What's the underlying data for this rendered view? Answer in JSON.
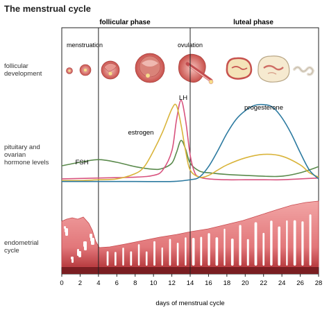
{
  "title": "The menstrual cycle",
  "phases": {
    "follicular": "follicular phase",
    "luteal": "luteal phase"
  },
  "events": {
    "menstruation": "menstruation",
    "ovulation": "ovulation"
  },
  "rows": {
    "follicular": [
      "follicular",
      "development"
    ],
    "hormone": [
      "pituitary and",
      "ovarian",
      "hormone levels"
    ],
    "endometrial": [
      "endometrial",
      "cycle"
    ]
  },
  "chart_data": {
    "type": "line",
    "xlabel": "days of menstrual cycle",
    "xlim": [
      0,
      28
    ],
    "xticks": [
      0,
      2,
      4,
      6,
      8,
      10,
      12,
      14,
      16,
      18,
      20,
      22,
      24,
      26,
      28
    ],
    "markers": [
      4,
      14
    ],
    "series": [
      {
        "name": "FSH",
        "color": "#5a8a4c",
        "x": [
          0,
          2,
          4,
          6,
          8,
          10,
          11,
          12,
          12.5,
          13,
          13.5,
          14,
          15,
          16,
          18,
          20,
          22,
          24,
          26,
          28
        ],
        "y": [
          0.23,
          0.27,
          0.3,
          0.27,
          0.22,
          0.19,
          0.2,
          0.26,
          0.38,
          0.52,
          0.42,
          0.26,
          0.17,
          0.15,
          0.13,
          0.12,
          0.11,
          0.11,
          0.15,
          0.22
        ]
      },
      {
        "name": "LH",
        "color": "#d8527e",
        "x": [
          0,
          4,
          8,
          10,
          11,
          12,
          12.5,
          13,
          13.5,
          14,
          14.5,
          15,
          16,
          18,
          20,
          22,
          24,
          26,
          28
        ],
        "y": [
          0.08,
          0.09,
          0.1,
          0.12,
          0.18,
          0.4,
          0.75,
          0.98,
          0.75,
          0.35,
          0.15,
          0.1,
          0.08,
          0.07,
          0.07,
          0.07,
          0.07,
          0.08,
          0.09
        ]
      },
      {
        "name": "estrogen",
        "color": "#d9b43a",
        "x": [
          0,
          2,
          4,
          6,
          8,
          9,
          10,
          11,
          12,
          12.5,
          13,
          13.5,
          14,
          15,
          16,
          17,
          18,
          20,
          22,
          24,
          26,
          27,
          28
        ],
        "y": [
          0.06,
          0.06,
          0.07,
          0.08,
          0.14,
          0.22,
          0.4,
          0.62,
          0.88,
          0.92,
          0.7,
          0.4,
          0.18,
          0.1,
          0.12,
          0.18,
          0.24,
          0.32,
          0.36,
          0.34,
          0.24,
          0.15,
          0.1
        ]
      },
      {
        "name": "progesterone",
        "color": "#2c7aa0",
        "x": [
          0,
          4,
          8,
          12,
          14,
          15,
          16,
          17,
          18,
          19,
          20,
          21,
          22,
          23,
          24,
          25,
          26,
          27,
          28
        ],
        "y": [
          0.05,
          0.05,
          0.05,
          0.05,
          0.07,
          0.1,
          0.22,
          0.4,
          0.6,
          0.76,
          0.86,
          0.92,
          0.93,
          0.9,
          0.78,
          0.6,
          0.38,
          0.18,
          0.08
        ]
      }
    ]
  }
}
